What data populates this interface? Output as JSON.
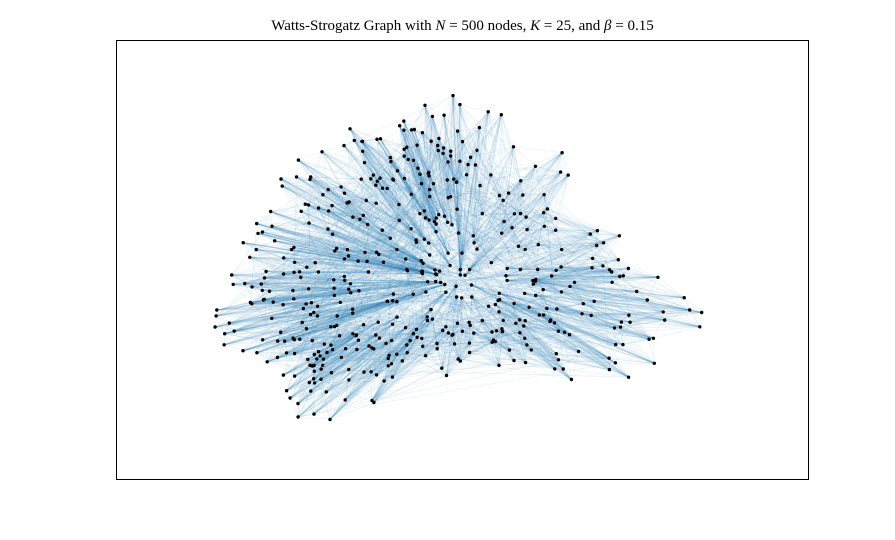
{
  "figure": {
    "title_parts": {
      "prefix": "Watts-Strogatz Graph with ",
      "n_symbol": "N",
      "n_eq": " = 500 nodes, ",
      "k_symbol": "K",
      "k_eq": " = 25, and ",
      "beta_symbol": "β",
      "beta_eq": " = 0.15"
    }
  },
  "graph": {
    "model": "watts-strogatz",
    "nodes": 500,
    "k": 25,
    "beta": 0.15,
    "edge_color": "#1f77b4",
    "node_color": "#000000",
    "background": "#ffffff"
  }
}
